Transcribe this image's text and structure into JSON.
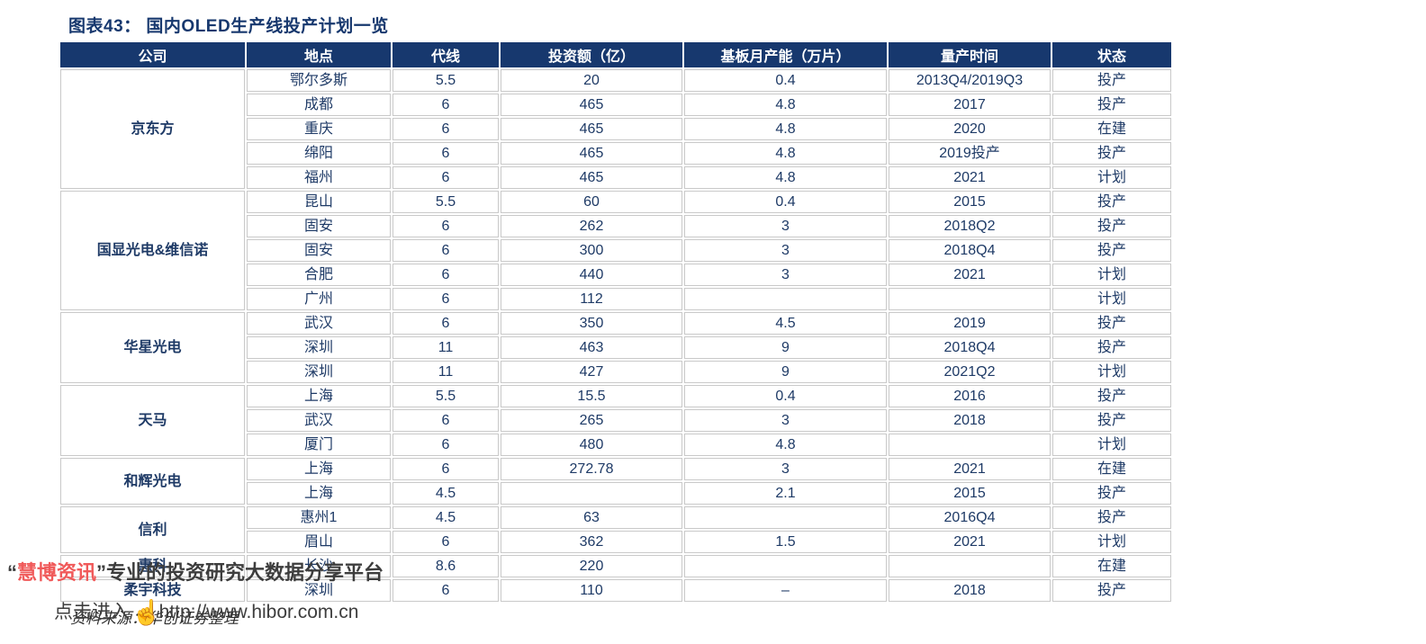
{
  "title": "图表43： 国内OLED生产线投产计划一览",
  "colors": {
    "header_bg": "#17386E",
    "body_text": "#1E3A66",
    "title_text": "#17386E",
    "watermark_red": "#F05A5A",
    "watermark_dark": "#3D3D3D",
    "cell_border": "#C9C9C9"
  },
  "table": {
    "headers": [
      "公司",
      "地点",
      "代线",
      "投资额（亿）",
      "基板月产能（万片）",
      "量产时间",
      "状态"
    ],
    "groups": [
      {
        "company": "京东方",
        "rows": [
          [
            "鄂尔多斯",
            "5.5",
            "20",
            "0.4",
            "2013Q4/2019Q3",
            "投产"
          ],
          [
            "成都",
            "6",
            "465",
            "4.8",
            "2017",
            "投产"
          ],
          [
            "重庆",
            "6",
            "465",
            "4.8",
            "2020",
            "在建"
          ],
          [
            "绵阳",
            "6",
            "465",
            "4.8",
            "2019投产",
            "投产"
          ],
          [
            "福州",
            "6",
            "465",
            "4.8",
            "2021",
            "计划"
          ]
        ]
      },
      {
        "company": "国显光电&维信诺",
        "rows": [
          [
            "昆山",
            "5.5",
            "60",
            "0.4",
            "2015",
            "投产"
          ],
          [
            "固安",
            "6",
            "262",
            "3",
            "2018Q2",
            "投产"
          ],
          [
            "固安",
            "6",
            "300",
            "3",
            "2018Q4",
            "投产"
          ],
          [
            "合肥",
            "6",
            "440",
            "3",
            "2021",
            "计划"
          ],
          [
            "广州",
            "6",
            "112",
            "",
            "",
            "计划"
          ]
        ]
      },
      {
        "company": "华星光电",
        "rows": [
          [
            "武汉",
            "6",
            "350",
            "4.5",
            "2019",
            "投产"
          ],
          [
            "深圳",
            "11",
            "463",
            "9",
            "2018Q4",
            "投产"
          ],
          [
            "深圳",
            "11",
            "427",
            "9",
            "2021Q2",
            "计划"
          ]
        ]
      },
      {
        "company": "天马",
        "rows": [
          [
            "上海",
            "5.5",
            "15.5",
            "0.4",
            "2016",
            "投产"
          ],
          [
            "武汉",
            "6",
            "265",
            "3",
            "2018",
            "投产"
          ],
          [
            "厦门",
            "6",
            "480",
            "4.8",
            "",
            "计划"
          ]
        ]
      },
      {
        "company": "和辉光电",
        "rows": [
          [
            "上海",
            "6",
            "272.78",
            "3",
            "2021",
            "在建"
          ],
          [
            "上海",
            "4.5",
            "",
            "2.1",
            "2015",
            "投产"
          ]
        ]
      },
      {
        "company": "信利",
        "rows": [
          [
            "惠州1",
            "4.5",
            "63",
            "",
            "2016Q4",
            "投产"
          ],
          [
            "眉山",
            "6",
            "362",
            "1.5",
            "2021",
            "计划"
          ]
        ]
      },
      {
        "company": "惠科",
        "rows": [
          [
            "长沙",
            "8.6",
            "220",
            "",
            "",
            "在建"
          ]
        ]
      },
      {
        "company": "柔宇科技",
        "rows": [
          [
            "深圳",
            "6",
            "110",
            "–",
            "2018",
            "投产"
          ]
        ]
      }
    ]
  },
  "watermark": {
    "open_quote": "“",
    "brand": "慧博资讯",
    "close_quote": "”",
    "slogan": "专业的投资研究大数据分享平台",
    "click_text": "点击进入",
    "hand_icon": "☝",
    "url": "http://www.hibor.com.cn"
  },
  "footer": {
    "source": "资料来源：华创证券整理"
  }
}
